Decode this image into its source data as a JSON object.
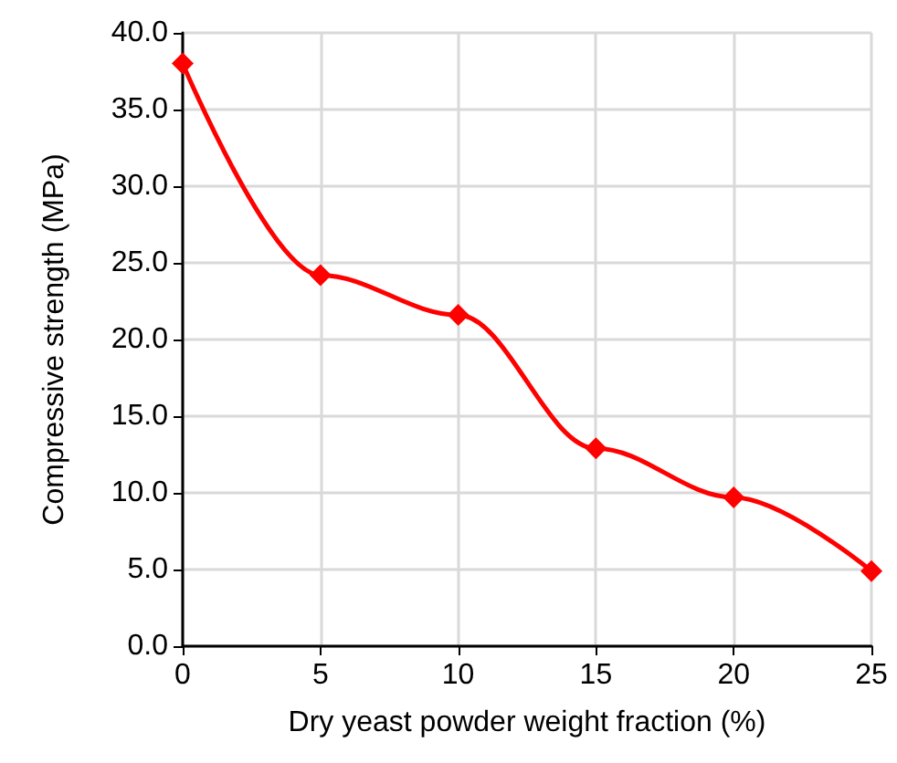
{
  "chart_data": {
    "type": "line",
    "xlabel": "Dry yeast powder weight fraction (%)",
    "ylabel": "Compressive strength (MPa)",
    "x": [
      0,
      5,
      10,
      15,
      20,
      25
    ],
    "series": [
      {
        "color": "#ff0000",
        "values": [
          38.0,
          24.2,
          21.6,
          12.9,
          9.7,
          4.9
        ]
      }
    ],
    "xlim": [
      0,
      25
    ],
    "xticks": [
      0,
      5,
      10,
      15,
      20,
      25
    ],
    "ylim": [
      0,
      40
    ],
    "yticks": [
      {
        "value": 0,
        "label": "0.0"
      },
      {
        "value": 5,
        "label": "5.0"
      },
      {
        "value": 10,
        "label": "10.0"
      },
      {
        "value": 15,
        "label": "15.0"
      },
      {
        "value": 20,
        "label": "20.0"
      },
      {
        "value": 25,
        "label": "25.0"
      },
      {
        "value": 30,
        "label": "30.0"
      },
      {
        "value": 35,
        "label": "35.0"
      },
      {
        "value": 40,
        "label": "40.0"
      }
    ],
    "grid": true,
    "marker": "diamond",
    "line_style": "solid"
  }
}
